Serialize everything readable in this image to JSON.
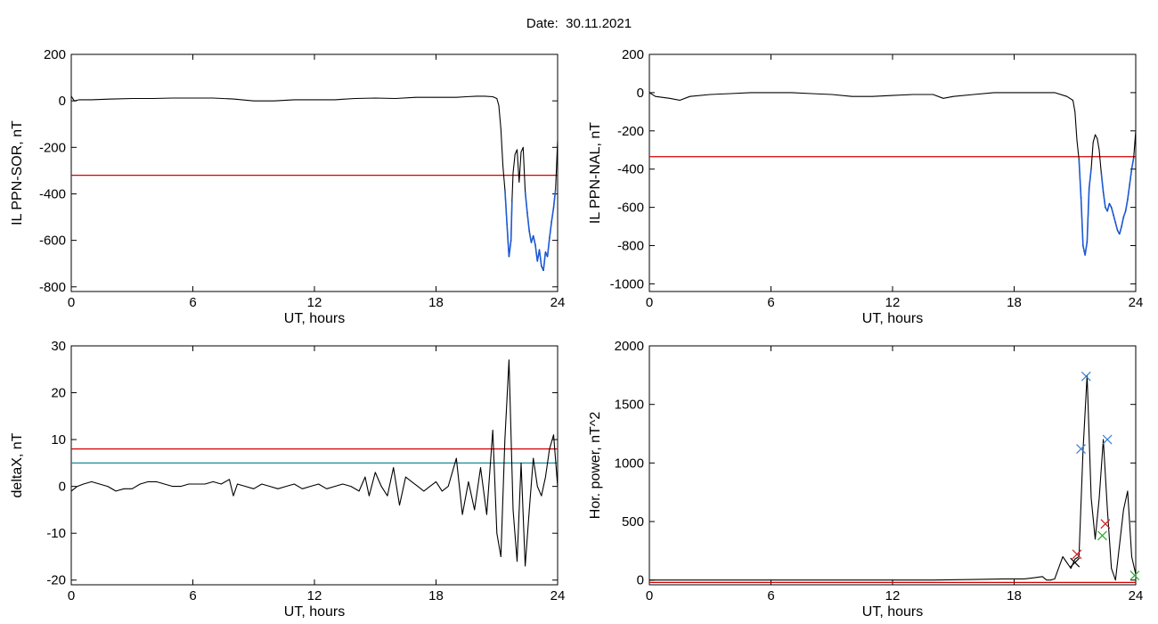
{
  "header": {
    "title": "Date:  30.11.2021"
  },
  "colors": {
    "axis": "#000000",
    "trace": "#000000",
    "threshold_red": "#d40000",
    "threshold_teal": "#1a8a96",
    "highlight_blue": "#1f5bd6",
    "marker_blue": "#3a7fd0",
    "marker_red": "#cc2020",
    "marker_green": "#2aa82a",
    "marker_black": "#000000"
  },
  "chart_data": [
    {
      "type": "line",
      "id": "sor",
      "xlabel": "UT, hours",
      "ylabel": "IL PPN-SOR, nT",
      "xlim": [
        0,
        24
      ],
      "ylim": [
        -820,
        200
      ],
      "xticks": [
        0,
        6,
        12,
        18,
        24
      ],
      "yticks": [
        -800,
        -600,
        -400,
        -200,
        0,
        200
      ],
      "threshold": {
        "y": -320,
        "color": "red"
      },
      "series": [
        {
          "color": "black",
          "highlight_below_threshold": "blue",
          "x": [
            0,
            0.15,
            0.4,
            1.0,
            2.0,
            3.0,
            4.0,
            5.0,
            6.0,
            7.0,
            8.0,
            9.0,
            10.0,
            11.0,
            12.0,
            13.0,
            14.0,
            15.0,
            16.0,
            17.0,
            18.0,
            19.0,
            19.5,
            20.0,
            20.4,
            20.8,
            21.0,
            21.1,
            21.2,
            21.3,
            21.4,
            21.5,
            21.6,
            21.7,
            21.75,
            21.8,
            21.9,
            22.0,
            22.1,
            22.2,
            22.3,
            22.4,
            22.5,
            22.6,
            22.7,
            22.8,
            22.9,
            23.0,
            23.1,
            23.2,
            23.3,
            23.4,
            23.5,
            23.6,
            23.7,
            23.8,
            23.9,
            24.0
          ],
          "y": [
            20,
            0,
            5,
            5,
            8,
            10,
            10,
            12,
            12,
            12,
            8,
            0,
            0,
            5,
            5,
            5,
            10,
            12,
            10,
            15,
            15,
            15,
            18,
            20,
            20,
            18,
            10,
            -20,
            -120,
            -280,
            -380,
            -530,
            -670,
            -600,
            -430,
            -310,
            -230,
            -210,
            -350,
            -220,
            -200,
            -390,
            -480,
            -560,
            -610,
            -580,
            -620,
            -690,
            -640,
            -710,
            -730,
            -650,
            -670,
            -590,
            -520,
            -460,
            -380,
            -170
          ]
        }
      ]
    },
    {
      "type": "line",
      "id": "nal",
      "xlabel": "UT, hours",
      "ylabel": "IL PPN-NAL, nT",
      "xlim": [
        0,
        24
      ],
      "ylim": [
        -1040,
        200
      ],
      "xticks": [
        0,
        6,
        12,
        18,
        24
      ],
      "yticks": [
        -1000,
        -800,
        -600,
        -400,
        -200,
        0,
        200
      ],
      "threshold": {
        "y": -335,
        "color": "red"
      },
      "series": [
        {
          "color": "black",
          "highlight_below_threshold": "blue",
          "x": [
            0,
            0.3,
            1.0,
            1.5,
            2.0,
            3.0,
            4.0,
            5.0,
            6.0,
            7.0,
            8.0,
            9.0,
            10.0,
            11.0,
            12.0,
            13.0,
            14.0,
            14.5,
            15.0,
            16.0,
            17.0,
            18.0,
            19.0,
            20.0,
            20.6,
            20.9,
            21.0,
            21.1,
            21.2,
            21.3,
            21.4,
            21.5,
            21.6,
            21.7,
            21.8,
            21.9,
            22.0,
            22.1,
            22.2,
            22.3,
            22.4,
            22.5,
            22.6,
            22.7,
            22.8,
            22.9,
            23.0,
            23.1,
            23.2,
            23.3,
            23.4,
            23.5,
            23.6,
            23.7,
            23.8,
            23.9,
            24.0
          ],
          "y": [
            0,
            -20,
            -30,
            -40,
            -20,
            -10,
            -5,
            0,
            0,
            0,
            -5,
            -10,
            -20,
            -20,
            -15,
            -10,
            -10,
            -30,
            -20,
            -10,
            0,
            0,
            0,
            0,
            -20,
            -40,
            -100,
            -250,
            -350,
            -550,
            -800,
            -850,
            -780,
            -500,
            -400,
            -260,
            -220,
            -240,
            -300,
            -420,
            -520,
            -600,
            -620,
            -580,
            -600,
            -640,
            -680,
            -720,
            -740,
            -700,
            -650,
            -620,
            -560,
            -480,
            -400,
            -340,
            -200
          ]
        }
      ]
    },
    {
      "type": "line",
      "id": "deltax",
      "xlabel": "UT, hours",
      "ylabel": "deltaX, nT",
      "xlim": [
        0,
        24
      ],
      "ylim": [
        -21,
        30
      ],
      "xticks": [
        0,
        6,
        12,
        18,
        24
      ],
      "yticks": [
        -20,
        -10,
        0,
        10,
        20,
        30
      ],
      "thresholds": [
        {
          "y": 8,
          "color": "red"
        },
        {
          "y": 5,
          "color": "teal"
        }
      ],
      "series": [
        {
          "color": "black",
          "x": [
            0,
            0.3,
            0.6,
            1.0,
            1.4,
            1.8,
            2.2,
            2.6,
            3.0,
            3.4,
            3.8,
            4.2,
            4.6,
            5.0,
            5.4,
            5.8,
            6.2,
            6.6,
            7.0,
            7.4,
            7.8,
            8.0,
            8.2,
            8.6,
            9.0,
            9.4,
            9.8,
            10.2,
            10.6,
            11.0,
            11.4,
            11.8,
            12.2,
            12.6,
            13.0,
            13.4,
            13.8,
            14.2,
            14.5,
            14.7,
            15.0,
            15.3,
            15.6,
            15.9,
            16.2,
            16.5,
            16.8,
            17.1,
            17.4,
            17.7,
            18.0,
            18.3,
            18.6,
            19.0,
            19.3,
            19.6,
            19.9,
            20.2,
            20.5,
            20.8,
            21.0,
            21.2,
            21.4,
            21.6,
            21.8,
            22.0,
            22.2,
            22.4,
            22.6,
            22.8,
            23.0,
            23.2,
            23.4,
            23.6,
            23.8,
            24.0
          ],
          "y": [
            -1,
            0,
            0.5,
            1,
            0.5,
            0,
            -1,
            -0.5,
            -0.5,
            0.5,
            1,
            1,
            0.5,
            0,
            0,
            0.5,
            0.5,
            0.5,
            1,
            0.5,
            1.5,
            -2,
            0.5,
            0,
            -0.5,
            0.5,
            0,
            -0.5,
            0,
            0.5,
            -0.5,
            0,
            0.5,
            -0.5,
            0,
            0.5,
            0,
            -1,
            2,
            -2,
            3,
            0,
            -2,
            4,
            -4,
            2,
            1,
            0,
            -1,
            0,
            1,
            -1,
            0,
            6,
            -6,
            1,
            -5,
            4,
            -6,
            12,
            -10,
            -15,
            10,
            27,
            -5,
            -16,
            5,
            -17,
            -5,
            6,
            0,
            -2,
            2,
            8,
            11,
            0
          ]
        }
      ]
    },
    {
      "type": "line",
      "id": "power",
      "xlabel": "UT, hours",
      "ylabel": "Hor. power, nT^2",
      "xlim": [
        0,
        24
      ],
      "ylim": [
        -40,
        2000
      ],
      "xticks": [
        0,
        6,
        12,
        18,
        24
      ],
      "yticks": [
        0,
        500,
        1000,
        1500,
        2000
      ],
      "threshold": {
        "y": -20,
        "color": "red"
      },
      "series": [
        {
          "color": "black",
          "x": [
            0,
            14.0,
            16.0,
            17.5,
            18.5,
            19.0,
            19.4,
            19.6,
            19.8,
            20.0,
            20.4,
            20.8,
            21.0,
            21.2,
            21.4,
            21.6,
            21.8,
            22.0,
            22.2,
            22.4,
            22.6,
            22.8,
            23.0,
            23.2,
            23.4,
            23.6,
            23.8,
            24.0
          ],
          "y": [
            0,
            0,
            5,
            10,
            10,
            20,
            30,
            0,
            0,
            10,
            200,
            100,
            180,
            200,
            1100,
            1750,
            700,
            350,
            700,
            1200,
            600,
            100,
            0,
            300,
            600,
            760,
            200,
            50
          ]
        }
      ],
      "markers": [
        {
          "x": 21.3,
          "y": 1120,
          "color": "blue",
          "shape": "x"
        },
        {
          "x": 21.55,
          "y": 1740,
          "color": "blue",
          "shape": "x"
        },
        {
          "x": 22.6,
          "y": 1200,
          "color": "blue",
          "shape": "x"
        },
        {
          "x": 22.5,
          "y": 480,
          "color": "red",
          "shape": "x"
        },
        {
          "x": 22.35,
          "y": 380,
          "color": "green",
          "shape": "x"
        },
        {
          "x": 21.1,
          "y": 220,
          "color": "red",
          "shape": "x"
        },
        {
          "x": 21.0,
          "y": 150,
          "color": "black",
          "shape": "x"
        },
        {
          "x": 23.95,
          "y": 40,
          "color": "green",
          "shape": "x"
        }
      ]
    }
  ]
}
